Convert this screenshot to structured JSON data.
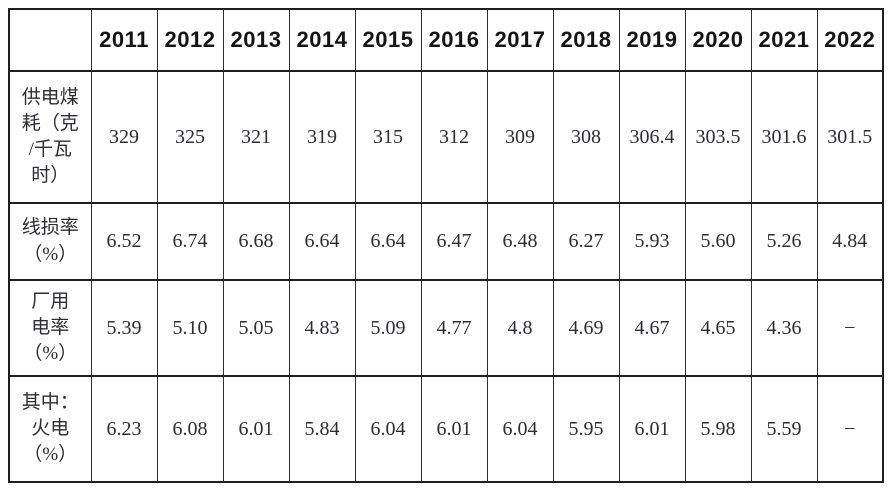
{
  "table": {
    "corner_label": "",
    "columns": [
      "2011",
      "2012",
      "2013",
      "2014",
      "2015",
      "2016",
      "2017",
      "2018",
      "2019",
      "2020",
      "2021",
      "2022"
    ],
    "rows": [
      {
        "label": "供电煤\n耗（克\n/千瓦\n时）",
        "values": [
          "329",
          "325",
          "321",
          "319",
          "315",
          "312",
          "309",
          "308",
          "306.4",
          "303.5",
          "301.6",
          "301.5"
        ]
      },
      {
        "label": "线损率\n（%）",
        "values": [
          "6.52",
          "6.74",
          "6.68",
          "6.64",
          "6.64",
          "6.47",
          "6.48",
          "6.27",
          "5.93",
          "5.60",
          "5.26",
          "4.84"
        ]
      },
      {
        "label": "厂用\n电率\n（%）",
        "values": [
          "5.39",
          "5.10",
          "5.05",
          "4.83",
          "5.09",
          "4.77",
          "4.8",
          "4.69",
          "4.67",
          "4.65",
          "4.36",
          "−"
        ]
      },
      {
        "label": "其中：\n火电\n（%）",
        "values": [
          "6.23",
          "6.08",
          "6.01",
          "5.84",
          "6.04",
          "6.01",
          "6.04",
          "5.95",
          "6.01",
          "5.98",
          "5.59",
          "−"
        ]
      }
    ],
    "colors": {
      "border": "#1f1f1f",
      "text": "#2d2d33",
      "header_text": "#141414",
      "background": "#ffffff"
    }
  }
}
